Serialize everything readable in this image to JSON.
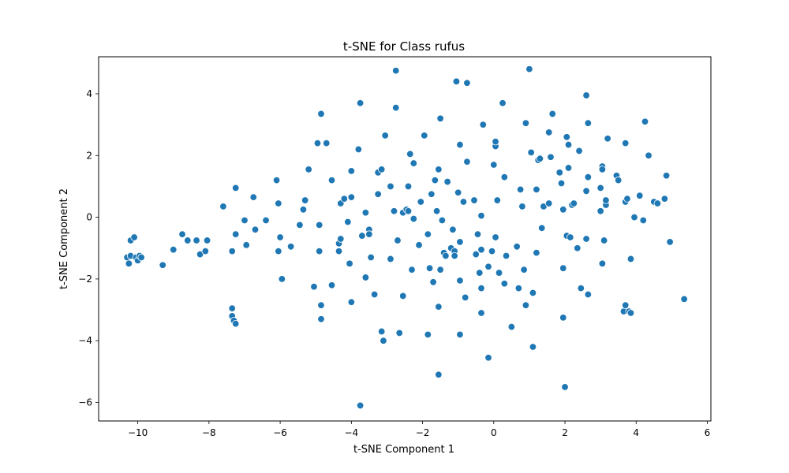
{
  "chart_data": {
    "type": "scatter",
    "title": "t-SNE for Class rufus",
    "xlabel": "t-SNE Component 1",
    "ylabel": "t-SNE Component 2",
    "xlim": [
      -11.1,
      6.1
    ],
    "ylim": [
      -6.6,
      5.2
    ],
    "xticks": [
      -10,
      -8,
      -6,
      -4,
      -2,
      0,
      2,
      4,
      6
    ],
    "yticks": [
      -6,
      -4,
      -2,
      0,
      2,
      4
    ],
    "grid": false,
    "marker_color": "#1f77b4",
    "marker_edge_color": "#ffffff",
    "points": [
      [
        -10.3,
        -1.3
      ],
      [
        -10.25,
        -1.5
      ],
      [
        -10.2,
        -1.25
      ],
      [
        -10.2,
        -0.75
      ],
      [
        -10.1,
        -0.65
      ],
      [
        -10.05,
        -1.3
      ],
      [
        -10.0,
        -1.4
      ],
      [
        -9.95,
        -1.25
      ],
      [
        -9.9,
        -1.3
      ],
      [
        -9.3,
        -1.55
      ],
      [
        -9.0,
        -1.05
      ],
      [
        -8.75,
        -0.55
      ],
      [
        -8.6,
        -0.75
      ],
      [
        -8.35,
        -0.75
      ],
      [
        -8.25,
        -1.2
      ],
      [
        -8.1,
        -1.1
      ],
      [
        -8.05,
        -0.75
      ],
      [
        -7.6,
        0.35
      ],
      [
        -7.35,
        -1.1
      ],
      [
        -7.35,
        -2.95
      ],
      [
        -7.35,
        -3.2
      ],
      [
        -7.3,
        -3.35
      ],
      [
        -7.25,
        -3.45
      ],
      [
        -7.25,
        -0.55
      ],
      [
        -7.25,
        0.95
      ],
      [
        -7.0,
        -0.1
      ],
      [
        -6.95,
        -0.9
      ],
      [
        -6.75,
        0.65
      ],
      [
        -6.7,
        -0.4
      ],
      [
        -6.4,
        -0.1
      ],
      [
        -6.1,
        1.2
      ],
      [
        -6.05,
        0.45
      ],
      [
        -6.05,
        -1.1
      ],
      [
        -6.0,
        -0.65
      ],
      [
        -5.95,
        -2.0
      ],
      [
        -5.7,
        -0.95
      ],
      [
        -5.45,
        -0.25
      ],
      [
        -5.35,
        0.25
      ],
      [
        -5.3,
        0.55
      ],
      [
        -5.2,
        1.55
      ],
      [
        -5.05,
        -2.25
      ],
      [
        -4.95,
        2.4
      ],
      [
        -4.9,
        -0.25
      ],
      [
        -4.9,
        -1.1
      ],
      [
        -4.85,
        -2.85
      ],
      [
        -4.85,
        -3.3
      ],
      [
        -4.85,
        3.35
      ],
      [
        -4.7,
        2.4
      ],
      [
        -4.55,
        1.2
      ],
      [
        -4.55,
        -2.2
      ],
      [
        -4.35,
        -1.1
      ],
      [
        -4.35,
        -0.85
      ],
      [
        -4.3,
        -0.7
      ],
      [
        -4.3,
        0.45
      ],
      [
        -4.2,
        0.6
      ],
      [
        -4.1,
        -0.15
      ],
      [
        -4.05,
        -1.5
      ],
      [
        -4.0,
        -2.75
      ],
      [
        -4.0,
        1.5
      ],
      [
        -4.0,
        0.65
      ],
      [
        -3.8,
        2.2
      ],
      [
        -3.75,
        -6.1
      ],
      [
        -3.75,
        3.7
      ],
      [
        -3.7,
        -0.6
      ],
      [
        -3.6,
        0.15
      ],
      [
        -3.6,
        -1.95
      ],
      [
        -3.5,
        -0.4
      ],
      [
        -3.5,
        -0.55
      ],
      [
        -3.45,
        -1.3
      ],
      [
        -3.35,
        -2.5
      ],
      [
        -3.25,
        0.75
      ],
      [
        -3.25,
        1.45
      ],
      [
        -3.15,
        1.55
      ],
      [
        -3.15,
        -3.7
      ],
      [
        -3.1,
        -4.0
      ],
      [
        -3.05,
        2.65
      ],
      [
        -2.9,
        -1.35
      ],
      [
        -2.9,
        1.0
      ],
      [
        -2.8,
        0.2
      ],
      [
        -2.75,
        4.75
      ],
      [
        -2.75,
        3.55
      ],
      [
        -2.7,
        -0.75
      ],
      [
        -2.65,
        -3.75
      ],
      [
        -2.55,
        -2.55
      ],
      [
        -2.55,
        0.15
      ],
      [
        -2.45,
        0.25
      ],
      [
        -2.4,
        0.2
      ],
      [
        -2.4,
        1.0
      ],
      [
        -2.35,
        2.05
      ],
      [
        -2.3,
        -1.7
      ],
      [
        -2.25,
        1.75
      ],
      [
        -2.25,
        -0.05
      ],
      [
        -2.1,
        -0.9
      ],
      [
        -2.05,
        0.5
      ],
      [
        -1.95,
        2.65
      ],
      [
        -1.85,
        -0.55
      ],
      [
        -1.85,
        -3.8
      ],
      [
        -1.8,
        -1.65
      ],
      [
        -1.75,
        0.75
      ],
      [
        -1.7,
        -2.1
      ],
      [
        -1.65,
        1.2
      ],
      [
        -1.6,
        0.2
      ],
      [
        -1.55,
        -2.9
      ],
      [
        -1.55,
        -5.1
      ],
      [
        -1.55,
        1.55
      ],
      [
        -1.5,
        3.2
      ],
      [
        -1.5,
        -1.7
      ],
      [
        -1.45,
        -0.1
      ],
      [
        -1.4,
        -1.15
      ],
      [
        -1.35,
        -1.25
      ],
      [
        -1.3,
        1.15
      ],
      [
        -1.2,
        -1.0
      ],
      [
        -1.15,
        -0.4
      ],
      [
        -1.1,
        -1.1
      ],
      [
        -1.1,
        -1.25
      ],
      [
        -1.05,
        4.4
      ],
      [
        -1.0,
        0.8
      ],
      [
        -0.95,
        2.35
      ],
      [
        -0.95,
        -0.8
      ],
      [
        -0.95,
        -2.05
      ],
      [
        -0.95,
        -3.8
      ],
      [
        -0.85,
        0.5
      ],
      [
        -0.8,
        -2.6
      ],
      [
        -0.75,
        1.8
      ],
      [
        -0.75,
        4.35
      ],
      [
        -0.55,
        0.55
      ],
      [
        -0.5,
        -1.2
      ],
      [
        -0.45,
        -0.55
      ],
      [
        -0.4,
        -1.8
      ],
      [
        -0.35,
        0.05
      ],
      [
        -0.35,
        -1.05
      ],
      [
        -0.35,
        -2.3
      ],
      [
        -0.35,
        -3.1
      ],
      [
        -0.3,
        3.0
      ],
      [
        -0.15,
        -4.55
      ],
      [
        -0.15,
        -1.6
      ],
      [
        -0.05,
        -1.1
      ],
      [
        0.0,
        1.7
      ],
      [
        0.05,
        2.3
      ],
      [
        0.05,
        2.45
      ],
      [
        0.05,
        -0.65
      ],
      [
        0.1,
        0.55
      ],
      [
        0.15,
        -1.8
      ],
      [
        0.25,
        3.7
      ],
      [
        0.3,
        -2.15
      ],
      [
        0.3,
        1.3
      ],
      [
        0.35,
        -1.25
      ],
      [
        0.5,
        -3.55
      ],
      [
        0.65,
        -0.95
      ],
      [
        0.7,
        -2.3
      ],
      [
        0.75,
        0.9
      ],
      [
        0.8,
        0.35
      ],
      [
        0.85,
        -1.7
      ],
      [
        0.9,
        -2.85
      ],
      [
        0.9,
        3.05
      ],
      [
        1.0,
        4.8
      ],
      [
        1.05,
        2.1
      ],
      [
        1.1,
        -2.45
      ],
      [
        1.1,
        -4.2
      ],
      [
        1.2,
        -1.15
      ],
      [
        1.2,
        0.9
      ],
      [
        1.25,
        1.85
      ],
      [
        1.3,
        1.9
      ],
      [
        1.35,
        -0.35
      ],
      [
        1.4,
        0.35
      ],
      [
        1.55,
        0.45
      ],
      [
        1.55,
        2.75
      ],
      [
        1.6,
        1.95
      ],
      [
        1.65,
        3.35
      ],
      [
        1.85,
        1.45
      ],
      [
        1.9,
        1.1
      ],
      [
        1.95,
        0.25
      ],
      [
        1.95,
        -1.65
      ],
      [
        1.95,
        -3.25
      ],
      [
        2.0,
        -5.5
      ],
      [
        2.05,
        -0.6
      ],
      [
        2.05,
        2.6
      ],
      [
        2.1,
        1.6
      ],
      [
        2.1,
        2.35
      ],
      [
        2.15,
        -0.65
      ],
      [
        2.2,
        0.4
      ],
      [
        2.25,
        0.45
      ],
      [
        2.35,
        -1.0
      ],
      [
        2.4,
        2.15
      ],
      [
        2.45,
        -2.3
      ],
      [
        2.6,
        3.95
      ],
      [
        2.6,
        0.85
      ],
      [
        2.6,
        -0.7
      ],
      [
        2.65,
        -2.5
      ],
      [
        2.65,
        3.05
      ],
      [
        2.65,
        1.3
      ],
      [
        3.0,
        0.95
      ],
      [
        3.0,
        0.2
      ],
      [
        3.05,
        1.65
      ],
      [
        3.05,
        1.55
      ],
      [
        3.05,
        -1.5
      ],
      [
        3.1,
        -0.75
      ],
      [
        3.15,
        0.4
      ],
      [
        3.15,
        0.55
      ],
      [
        3.2,
        2.55
      ],
      [
        3.45,
        1.35
      ],
      [
        3.5,
        1.2
      ],
      [
        3.65,
        -3.05
      ],
      [
        3.7,
        -2.85
      ],
      [
        3.7,
        2.4
      ],
      [
        3.7,
        0.5
      ],
      [
        3.75,
        0.6
      ],
      [
        3.8,
        -3.05
      ],
      [
        3.85,
        -3.1
      ],
      [
        3.85,
        -1.35
      ],
      [
        3.95,
        0.0
      ],
      [
        4.1,
        0.7
      ],
      [
        4.2,
        -0.1
      ],
      [
        4.25,
        3.1
      ],
      [
        4.35,
        2.0
      ],
      [
        4.5,
        0.5
      ],
      [
        4.6,
        0.45
      ],
      [
        4.8,
        0.6
      ],
      [
        4.85,
        1.35
      ],
      [
        4.95,
        -0.8
      ],
      [
        5.35,
        -2.65
      ]
    ]
  }
}
